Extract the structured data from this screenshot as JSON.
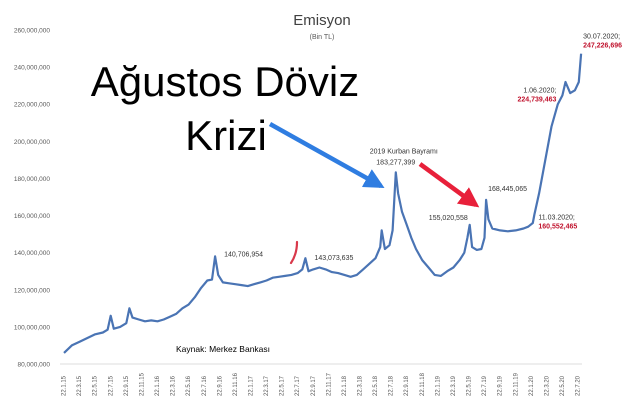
{
  "chart_data": {
    "type": "line",
    "title": "Emisyon",
    "subtitle": "(Bin TL)",
    "source": "Kaynak: Merkez Bankası",
    "overlay_text": [
      "Ağustos Döviz",
      "Krizi"
    ],
    "colors": {
      "line": "#4a74b4",
      "blue_arrow": "#2f7de1",
      "red_arrow": "#e8203a",
      "red_text": "#c0122d",
      "red_mark": "#d9394b"
    },
    "ylim": [
      80000000,
      260000000
    ],
    "yticks": [
      {
        "value": 80000000,
        "label": "80,000,000"
      },
      {
        "value": 100000000,
        "label": "100,000,000"
      },
      {
        "value": 120000000,
        "label": "120,000,000"
      },
      {
        "value": 140000000,
        "label": "140,000,000"
      },
      {
        "value": 160000000,
        "label": "160,000,000"
      },
      {
        "value": 180000000,
        "label": "180,000,000"
      },
      {
        "value": 200000000,
        "label": "200,000,000"
      },
      {
        "value": 220000000,
        "label": "220,000,000"
      },
      {
        "value": 240000000,
        "label": "240,000,000"
      },
      {
        "value": 260000000,
        "label": "260,000,000"
      }
    ],
    "xtick_labels": [
      "22.1.15",
      "22.3.15",
      "22.5.15",
      "22.7.15",
      "22.9.15",
      "22.11.15",
      "22.1.16",
      "22.3.16",
      "22.5.16",
      "22.7.16",
      "22.9.16",
      "22.11.16",
      "22.1.17",
      "22.3.17",
      "22.5.17",
      "22.7.17",
      "22.9.17",
      "22.11.17",
      "22.1.18",
      "22.3.18",
      "22.5.18",
      "22.7.18",
      "22.9.18",
      "22.11.18",
      "22.1.19",
      "22.3.19",
      "22.5.19",
      "22.7.19",
      "22.9.19",
      "22.11.19",
      "22.1.20",
      "22.3.20",
      "22.5.20",
      "22.7.20"
    ],
    "series": [
      {
        "points": [
          [
            0,
            86000000
          ],
          [
            0.5,
            90000000
          ],
          [
            1,
            92000000
          ],
          [
            1.5,
            94000000
          ],
          [
            2,
            96000000
          ],
          [
            2.5,
            97000000
          ],
          [
            2.8,
            98500000
          ],
          [
            3,
            106000000
          ],
          [
            3.2,
            99000000
          ],
          [
            3.6,
            100000000
          ],
          [
            4,
            102000000
          ],
          [
            4.2,
            110000000
          ],
          [
            4.4,
            105000000
          ],
          [
            4.8,
            104000000
          ],
          [
            5.2,
            103000000
          ],
          [
            5.6,
            103500000
          ],
          [
            6,
            103000000
          ],
          [
            6.4,
            104000000
          ],
          [
            6.8,
            105500000
          ],
          [
            7.2,
            107000000
          ],
          [
            7.6,
            110000000
          ],
          [
            8,
            112000000
          ],
          [
            8.4,
            116000000
          ],
          [
            8.8,
            121000000
          ],
          [
            9.2,
            125000000
          ],
          [
            9.5,
            125500000
          ],
          [
            9.7,
            138000000
          ],
          [
            9.9,
            128000000
          ],
          [
            10.2,
            124000000
          ],
          [
            10.6,
            123500000
          ],
          [
            11,
            123000000
          ],
          [
            11.4,
            122500000
          ],
          [
            11.8,
            122000000
          ],
          [
            12.2,
            123000000
          ],
          [
            12.6,
            124000000
          ],
          [
            13,
            125000000
          ],
          [
            13.4,
            126500000
          ],
          [
            13.8,
            127000000
          ],
          [
            14.2,
            127500000
          ],
          [
            14.6,
            128000000
          ],
          [
            15,
            129000000
          ],
          [
            15.3,
            131000000
          ],
          [
            15.5,
            137000000
          ],
          [
            15.7,
            130000000
          ],
          [
            16,
            131000000
          ],
          [
            16.4,
            132000000
          ],
          [
            16.8,
            131000000
          ],
          [
            17.2,
            129500000
          ],
          [
            17.6,
            129000000
          ],
          [
            18,
            128000000
          ],
          [
            18.4,
            127000000
          ],
          [
            18.8,
            128000000
          ],
          [
            19.2,
            131000000
          ],
          [
            19.6,
            134000000
          ],
          [
            20,
            137000000
          ],
          [
            20.3,
            143000000
          ],
          [
            20.4,
            152000000
          ],
          [
            20.6,
            142000000
          ],
          [
            20.9,
            144000000
          ],
          [
            21.1,
            152000000
          ],
          [
            21.3,
            183277399
          ],
          [
            21.45,
            172000000
          ],
          [
            21.7,
            162000000
          ],
          [
            22,
            155000000
          ],
          [
            22.3,
            148000000
          ],
          [
            22.6,
            142000000
          ],
          [
            23,
            136000000
          ],
          [
            23.4,
            132000000
          ],
          [
            23.8,
            128000000
          ],
          [
            24.2,
            127500000
          ],
          [
            24.6,
            130000000
          ],
          [
            25,
            132000000
          ],
          [
            25.4,
            136000000
          ],
          [
            25.7,
            140000000
          ],
          [
            25.9,
            148000000
          ],
          [
            26.05,
            155020558
          ],
          [
            26.2,
            143000000
          ],
          [
            26.5,
            141500000
          ],
          [
            26.8,
            142000000
          ],
          [
            27,
            148000000
          ],
          [
            27.1,
            168445065
          ],
          [
            27.25,
            158000000
          ],
          [
            27.5,
            153000000
          ],
          [
            28,
            152000000
          ],
          [
            28.5,
            151500000
          ],
          [
            29,
            152000000
          ],
          [
            29.5,
            153000000
          ],
          [
            29.8,
            154000000
          ],
          [
            30.1,
            156000000
          ],
          [
            30.2,
            160552465
          ],
          [
            30.5,
            172000000
          ],
          [
            30.9,
            190000000
          ],
          [
            31.3,
            208000000
          ],
          [
            31.7,
            220000000
          ],
          [
            32,
            224739463
          ],
          [
            32.2,
            232000000
          ],
          [
            32.5,
            226000000
          ],
          [
            32.8,
            227500000
          ],
          [
            33.05,
            232000000
          ],
          [
            33.2,
            247226696
          ]
        ]
      }
    ],
    "annotations": [
      {
        "x": 9.7,
        "y": 138000000,
        "text": "140,706,954",
        "style": "ann"
      },
      {
        "x": 15.5,
        "y": 137000000,
        "text": "143,073,635",
        "style": "ann"
      },
      {
        "x": 21.3,
        "y": 183277399,
        "text": "2019 Kurban Bayramı",
        "style": "ann-bold"
      },
      {
        "x": 21.3,
        "y": 183277399,
        "text": "183,277,399",
        "style": "ann"
      },
      {
        "x": 26.05,
        "y": 155020558,
        "text": "155,020,558",
        "style": "ann"
      },
      {
        "x": 27.1,
        "y": 168445065,
        "text": "168,445,065",
        "style": "ann"
      },
      {
        "x": 30.2,
        "y": 160552465,
        "text": "11.03.2020;",
        "style": "ann"
      },
      {
        "x": 30.2,
        "y": 160552465,
        "text": "160,552,465",
        "style": "red"
      },
      {
        "x": 32,
        "y": 224739463,
        "text": "1.06.2020;",
        "style": "ann"
      },
      {
        "x": 32,
        "y": 224739463,
        "text": "224,739,463",
        "style": "red"
      },
      {
        "x": 33.2,
        "y": 247226696,
        "text": "30.07.2020;",
        "style": "ann"
      },
      {
        "x": 33.2,
        "y": 247226696,
        "text": "247,226,696",
        "style": "red"
      }
    ]
  }
}
